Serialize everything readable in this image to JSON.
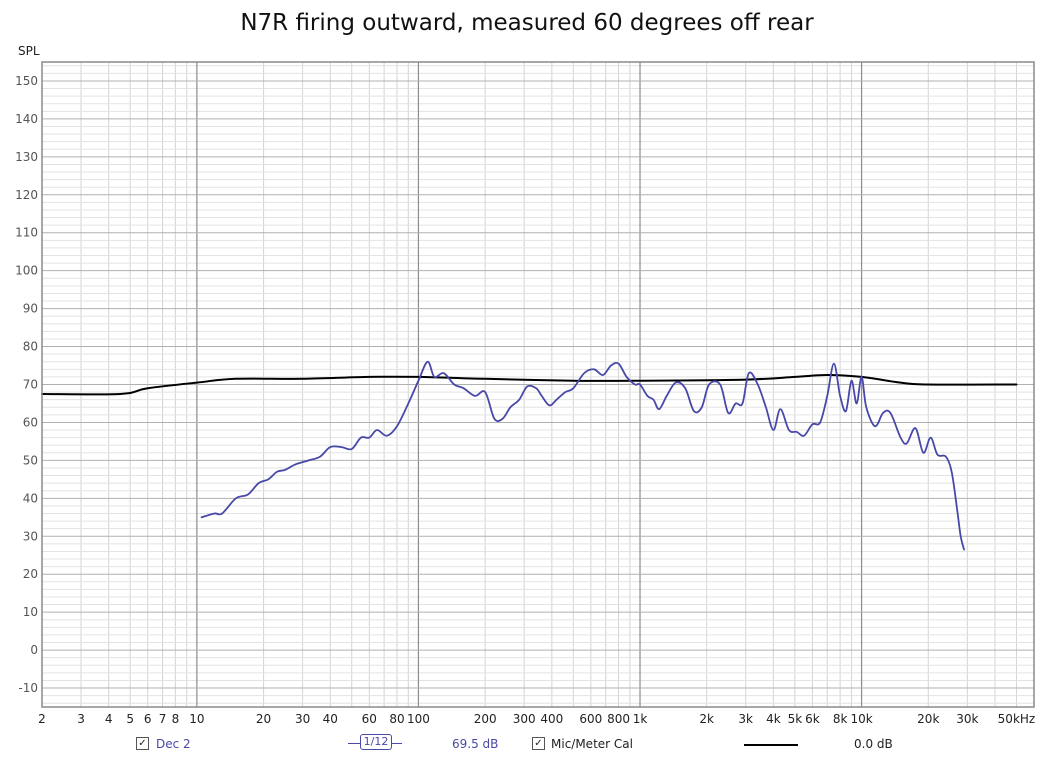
{
  "chart_data": {
    "type": "line",
    "title": "N7R firing outward, measured 60 degrees off rear",
    "ylabel": "SPL",
    "xlabel": "",
    "xscale": "log",
    "xlim": [
      2,
      60000
    ],
    "ylim": [
      -15,
      155
    ],
    "grid": true,
    "y_ticks": [
      -10,
      0,
      10,
      20,
      30,
      40,
      50,
      60,
      70,
      80,
      90,
      100,
      110,
      120,
      130,
      140,
      150
    ],
    "y_tick_labels": [
      "-10",
      "0",
      "10",
      "20",
      "30",
      "40",
      "50",
      "60",
      "70",
      "80",
      "90",
      "100",
      "110",
      "120",
      "130",
      "140",
      "150"
    ],
    "x_ticks": [
      2,
      3,
      4,
      5,
      6,
      7,
      8,
      10,
      20,
      30,
      40,
      60,
      80,
      100,
      200,
      300,
      400,
      600,
      800,
      1000,
      2000,
      3000,
      4000,
      5000,
      6000,
      8000,
      10000,
      20000,
      30000,
      50000
    ],
    "x_tick_labels": [
      "2",
      "3",
      "4",
      "5",
      "6",
      "7",
      "8",
      "10",
      "20",
      "30",
      "40",
      "60",
      "80",
      "100",
      "200",
      "300",
      "400",
      "600",
      "800",
      "1k",
      "2k",
      "3k",
      "4k",
      "5k",
      "6k",
      "8k",
      "10k",
      "20k",
      "30k",
      "50kHz"
    ],
    "series": [
      {
        "name": "Dec 2",
        "color": "#4848a8",
        "points": [
          [
            10.5,
            35
          ],
          [
            12,
            36
          ],
          [
            13,
            36
          ],
          [
            15,
            40
          ],
          [
            17,
            41
          ],
          [
            19,
            44
          ],
          [
            21,
            45
          ],
          [
            23,
            47
          ],
          [
            25,
            47.5
          ],
          [
            28,
            49
          ],
          [
            32,
            50
          ],
          [
            36,
            51
          ],
          [
            40,
            53.5
          ],
          [
            45,
            53.5
          ],
          [
            50,
            53
          ],
          [
            55,
            56
          ],
          [
            60,
            56
          ],
          [
            65,
            58
          ],
          [
            72,
            56.5
          ],
          [
            80,
            59
          ],
          [
            90,
            65
          ],
          [
            100,
            71
          ],
          [
            110,
            76
          ],
          [
            118,
            72
          ],
          [
            130,
            73
          ],
          [
            145,
            70
          ],
          [
            160,
            69
          ],
          [
            180,
            67
          ],
          [
            200,
            68
          ],
          [
            220,
            61
          ],
          [
            240,
            61
          ],
          [
            260,
            64
          ],
          [
            285,
            66
          ],
          [
            310,
            69.5
          ],
          [
            340,
            69
          ],
          [
            360,
            67
          ],
          [
            390,
            64.5
          ],
          [
            420,
            66
          ],
          [
            460,
            68
          ],
          [
            500,
            69
          ],
          [
            560,
            73
          ],
          [
            620,
            74
          ],
          [
            680,
            72.5
          ],
          [
            740,
            75
          ],
          [
            800,
            75.5
          ],
          [
            870,
            72
          ],
          [
            950,
            70
          ],
          [
            1000,
            70
          ],
          [
            1080,
            67
          ],
          [
            1150,
            66
          ],
          [
            1220,
            63.5
          ],
          [
            1320,
            67
          ],
          [
            1450,
            70.5
          ],
          [
            1600,
            69
          ],
          [
            1750,
            63
          ],
          [
            1900,
            64
          ],
          [
            2050,
            70
          ],
          [
            2300,
            70
          ],
          [
            2500,
            62.5
          ],
          [
            2700,
            65
          ],
          [
            2900,
            65
          ],
          [
            3100,
            73
          ],
          [
            3400,
            70
          ],
          [
            3700,
            64
          ],
          [
            4000,
            58
          ],
          [
            4300,
            63.5
          ],
          [
            4700,
            58
          ],
          [
            5100,
            57.5
          ],
          [
            5500,
            56.5
          ],
          [
            6000,
            59.5
          ],
          [
            6500,
            60
          ],
          [
            7000,
            67
          ],
          [
            7500,
            75.5
          ],
          [
            8000,
            67
          ],
          [
            8500,
            63
          ],
          [
            9000,
            71
          ],
          [
            9500,
            65
          ],
          [
            10000,
            72
          ],
          [
            10500,
            64
          ],
          [
            11500,
            59
          ],
          [
            12500,
            62.5
          ],
          [
            13500,
            62.5
          ],
          [
            15000,
            56
          ],
          [
            16000,
            54.5
          ],
          [
            17500,
            58.5
          ],
          [
            19000,
            52
          ],
          [
            20500,
            56
          ],
          [
            22000,
            51.5
          ],
          [
            24000,
            51
          ],
          [
            25500,
            47
          ],
          [
            27000,
            37
          ],
          [
            28000,
            30
          ],
          [
            29000,
            26.5
          ]
        ]
      },
      {
        "name": "Mic/Meter Cal",
        "color": "#000000",
        "points": [
          [
            2,
            67.5
          ],
          [
            4.5,
            67.5
          ],
          [
            6,
            69
          ],
          [
            10,
            70.5
          ],
          [
            15,
            71.5
          ],
          [
            30,
            71.5
          ],
          [
            60,
            72
          ],
          [
            100,
            72
          ],
          [
            200,
            71.5
          ],
          [
            500,
            71
          ],
          [
            1000,
            71
          ],
          [
            3000,
            71.3
          ],
          [
            5000,
            72
          ],
          [
            7000,
            72.5
          ],
          [
            10000,
            72
          ],
          [
            15000,
            70.5
          ],
          [
            20000,
            70
          ],
          [
            50000,
            70
          ]
        ]
      }
    ],
    "legend": {
      "series1_label": "Dec 2",
      "smoothing": "1/12",
      "series1_value": "69.5 dB",
      "series2_label": "Mic/Meter Cal",
      "series2_value": "0.0 dB",
      "position": "bottom"
    }
  }
}
